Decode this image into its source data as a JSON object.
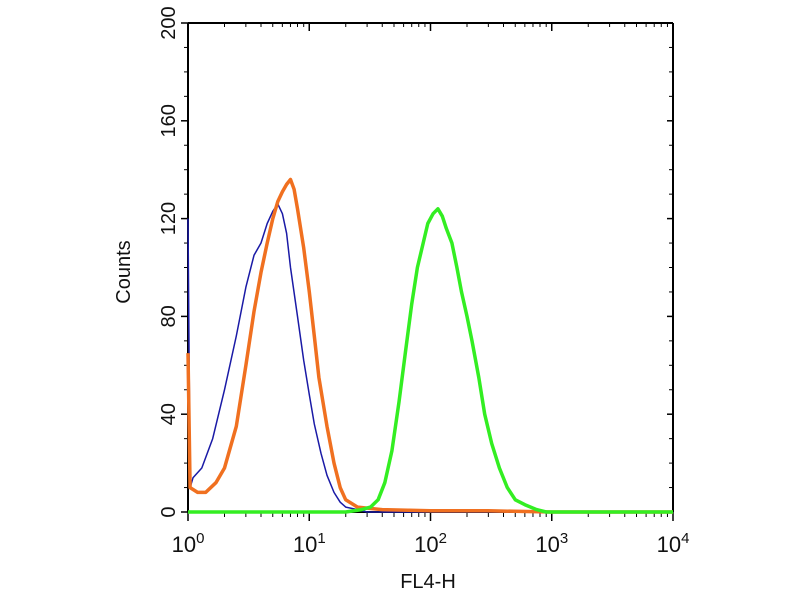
{
  "chart_data": {
    "type": "line",
    "title": "",
    "xlabel": "FL4-H",
    "ylabel": "Counts",
    "xscale": "log",
    "xlim": [
      1,
      10000
    ],
    "ylim": [
      0,
      200
    ],
    "yticks": [
      0,
      40,
      80,
      120,
      160,
      200
    ],
    "ytick_labels": [
      "0",
      "40",
      "80",
      "120",
      "160",
      "200"
    ],
    "xticks": [
      1,
      10,
      100,
      1000,
      10000
    ],
    "xtick_labels": [
      {
        "base": "10",
        "exp": "0"
      },
      {
        "base": "10",
        "exp": "1"
      },
      {
        "base": "10",
        "exp": "2"
      },
      {
        "base": "10",
        "exp": "3"
      },
      {
        "base": "10",
        "exp": "4"
      }
    ],
    "grid": false,
    "legend": "none",
    "series": [
      {
        "color": "#1a1aa6",
        "points": [
          [
            1,
            120
          ],
          [
            1.04,
            10
          ],
          [
            1.1,
            14
          ],
          [
            1.3,
            18
          ],
          [
            1.6,
            30
          ],
          [
            2,
            50
          ],
          [
            2.5,
            72
          ],
          [
            3,
            92
          ],
          [
            3.5,
            105
          ],
          [
            4,
            110
          ],
          [
            4.5,
            118
          ],
          [
            5,
            123
          ],
          [
            5.5,
            126
          ],
          [
            6,
            122
          ],
          [
            6.5,
            114
          ],
          [
            7,
            100
          ],
          [
            8,
            80
          ],
          [
            9,
            62
          ],
          [
            10,
            48
          ],
          [
            11,
            36
          ],
          [
            12.5,
            24
          ],
          [
            14,
            15
          ],
          [
            16,
            8
          ],
          [
            18,
            4
          ],
          [
            20,
            2
          ],
          [
            25,
            1
          ],
          [
            30,
            0
          ],
          [
            10000,
            0
          ]
        ]
      },
      {
        "color": "#f07020",
        "points": [
          [
            1,
            65
          ],
          [
            1.04,
            10
          ],
          [
            1.2,
            8
          ],
          [
            1.4,
            8
          ],
          [
            1.7,
            12
          ],
          [
            2,
            18
          ],
          [
            2.5,
            35
          ],
          [
            3,
            60
          ],
          [
            3.5,
            82
          ],
          [
            4,
            98
          ],
          [
            4.5,
            110
          ],
          [
            5,
            120
          ],
          [
            5.5,
            127
          ],
          [
            6,
            131
          ],
          [
            6.5,
            134
          ],
          [
            7,
            136
          ],
          [
            7.5,
            132
          ],
          [
            8,
            124
          ],
          [
            9,
            108
          ],
          [
            10,
            90
          ],
          [
            11,
            72
          ],
          [
            12,
            55
          ],
          [
            14,
            35
          ],
          [
            16,
            20
          ],
          [
            18,
            10
          ],
          [
            20,
            5
          ],
          [
            25,
            2
          ],
          [
            40,
            1
          ],
          [
            100,
            0.5
          ],
          [
            300,
            0.5
          ],
          [
            1000,
            0
          ],
          [
            10000,
            0
          ]
        ]
      },
      {
        "color": "#33ee22",
        "points": [
          [
            1,
            0
          ],
          [
            20,
            0
          ],
          [
            27,
            1
          ],
          [
            32,
            2
          ],
          [
            37,
            5
          ],
          [
            42,
            12
          ],
          [
            48,
            25
          ],
          [
            55,
            45
          ],
          [
            62,
            65
          ],
          [
            70,
            85
          ],
          [
            78,
            100
          ],
          [
            87,
            110
          ],
          [
            95,
            118
          ],
          [
            105,
            122
          ],
          [
            115,
            124
          ],
          [
            125,
            121
          ],
          [
            135,
            116
          ],
          [
            150,
            110
          ],
          [
            165,
            100
          ],
          [
            180,
            90
          ],
          [
            200,
            80
          ],
          [
            220,
            70
          ],
          [
            250,
            55
          ],
          [
            280,
            40
          ],
          [
            320,
            28
          ],
          [
            370,
            18
          ],
          [
            430,
            10
          ],
          [
            500,
            5
          ],
          [
            600,
            3
          ],
          [
            750,
            1
          ],
          [
            900,
            0
          ],
          [
            10000,
            0
          ]
        ]
      }
    ]
  }
}
